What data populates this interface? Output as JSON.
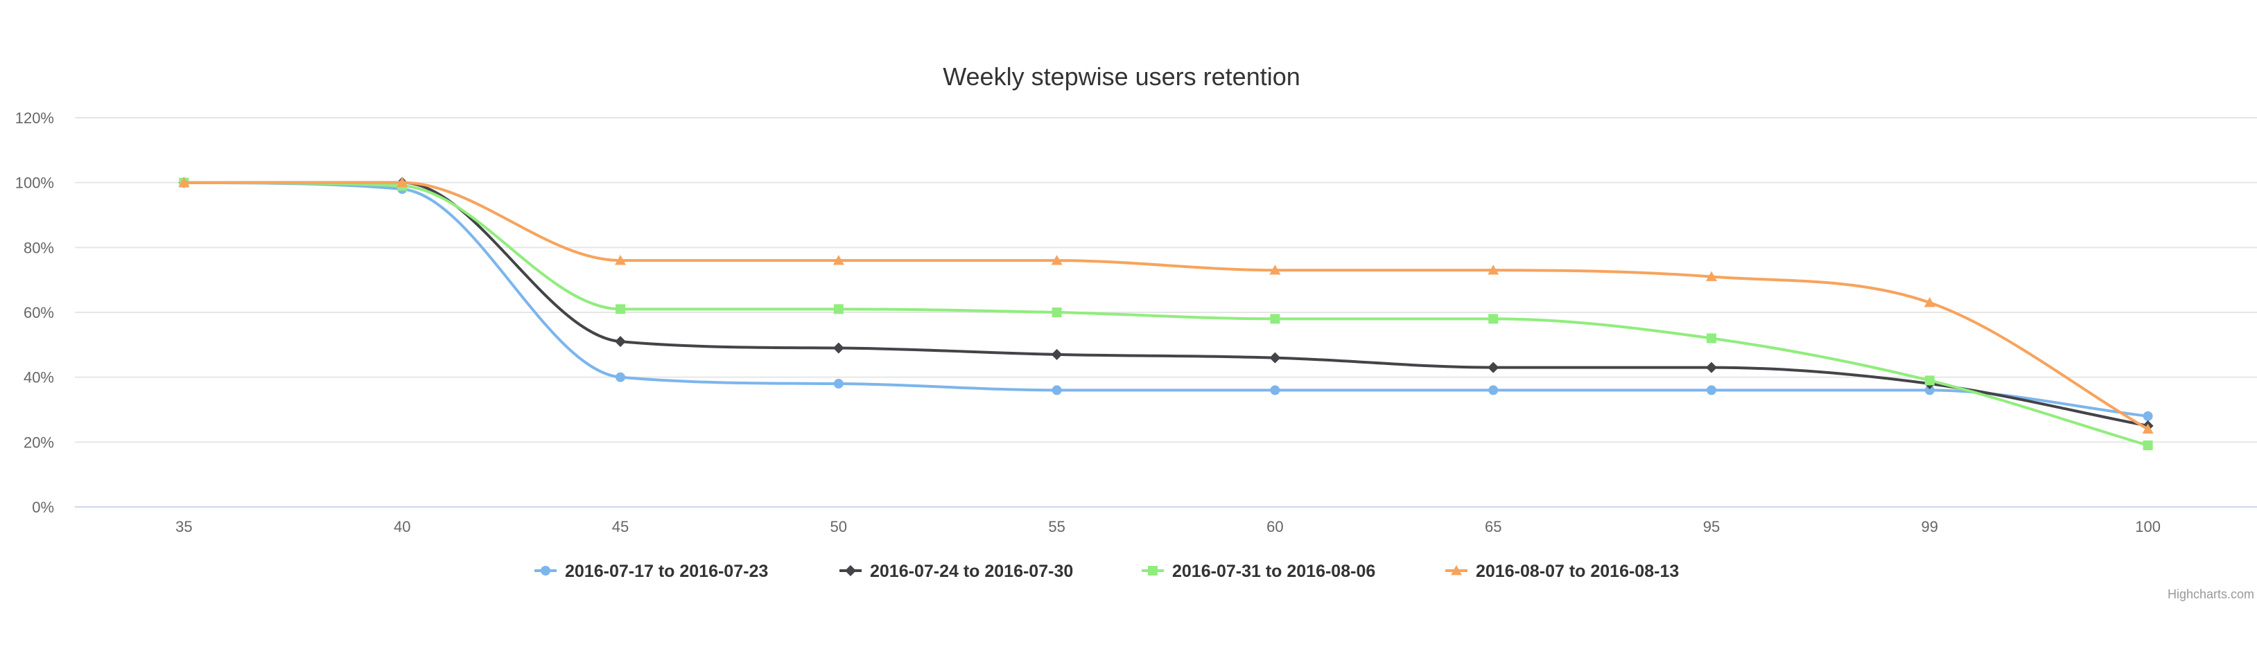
{
  "chart_data": {
    "type": "line",
    "title": "Weekly stepwise users retention",
    "categories": [
      "35",
      "40",
      "45",
      "50",
      "55",
      "60",
      "65",
      "95",
      "99",
      "100"
    ],
    "ylim": [
      0,
      120
    ],
    "yticks": [
      0,
      20,
      40,
      60,
      80,
      100,
      120
    ],
    "ytick_labels": [
      "0%",
      "20%",
      "40%",
      "60%",
      "80%",
      "100%",
      "120%"
    ],
    "grid": true,
    "legend_position": "bottom-center",
    "series": [
      {
        "name": "2016-07-17 to 2016-07-23",
        "color": "#7cb5ec",
        "marker": "circle",
        "values": [
          100,
          98,
          40,
          38,
          36,
          36,
          36,
          36,
          36,
          28
        ]
      },
      {
        "name": "2016-07-24 to 2016-07-30",
        "color": "#434348",
        "marker": "diamond",
        "values": [
          100,
          100,
          51,
          49,
          47,
          46,
          43,
          43,
          38,
          25
        ]
      },
      {
        "name": "2016-07-31 to 2016-08-06",
        "color": "#90ed7d",
        "marker": "square",
        "values": [
          100,
          99,
          61,
          61,
          60,
          58,
          58,
          52,
          39,
          19
        ]
      },
      {
        "name": "2016-08-07 to 2016-08-13",
        "color": "#f7a35c",
        "marker": "triangle",
        "values": [
          100,
          100,
          76,
          76,
          76,
          73,
          73,
          71,
          63,
          24
        ]
      }
    ],
    "credits": "Highcharts.com"
  }
}
